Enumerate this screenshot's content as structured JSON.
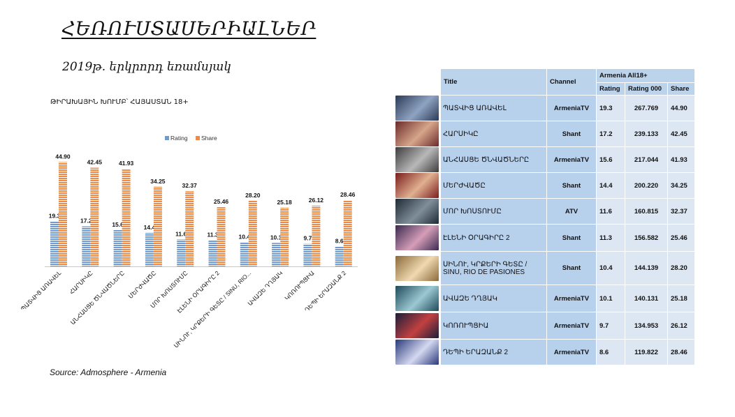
{
  "page": {
    "title": "ՀԵՌՈՒՍՏԱՍԵՐԻԱԼՆԵՐ",
    "subtitle": "2019թ. երկրորդ եռամսյակ",
    "source": "Source: Admosphere - Armenia"
  },
  "chart_data": {
    "type": "bar",
    "title": "ԹԻՐԱԽԱՅԻՆ ԽՈՒՄԲ՝ ՀԱՅԱՍՏԱՆ 18+",
    "categories": [
      "ՊԱՏՎԻՑ ԱՌԱՎԵԼ",
      "ՀԱՐՍԻԿԸ",
      "ԱՆՀԱՍՑԵ ԾՆՎԱԾՆԵՐԸ",
      "ՄԵՐԺՎԱԾԸ",
      "ՄՈՐ ԽՈՍՏՈՒՄԸ",
      "ԷԼԵՆԻ ՕՐԱԳԻՐԸ 2",
      "ՍԻՆՈՒ, ԿՐՔԵՐԻ ԳԵՏԸ / SINU, RIO...",
      "ԱՎԱԶԵ ԴՂՅԱԿ",
      "ԿՈՌՈՒՊՑԻԱ",
      "ԴԵՊԻ ԵՐԱԶԱՆՔ 2"
    ],
    "series": [
      {
        "name": "Rating",
        "values": [
          19.3,
          17.2,
          15.6,
          14.4,
          11.6,
          11.3,
          10.4,
          10.1,
          9.7,
          8.6
        ],
        "labels": [
          "19.3",
          "17.2",
          "15.6",
          "14.4",
          "11.6",
          "11.3",
          "10.4",
          "10.1",
          "9.7",
          "8.6"
        ],
        "color": "#6f9bd2"
      },
      {
        "name": "Share",
        "values": [
          44.9,
          42.45,
          41.93,
          34.25,
          32.37,
          25.46,
          28.2,
          25.18,
          26.12,
          28.46
        ],
        "labels": [
          "44.90",
          "42.45",
          "41.93",
          "34.25",
          "32.37",
          "25.46",
          "28.20",
          "25.18",
          "26.12",
          "28.46"
        ],
        "color": "#ee8a48"
      }
    ],
    "legend_position": "top",
    "ylim": [
      0,
      50
    ],
    "grid": false
  },
  "table": {
    "headers": {
      "title": "Title",
      "channel": "Channel",
      "group": "Armenia All18+",
      "rating": "Rating",
      "rating000": "Rating 000",
      "share": "Share"
    },
    "rows": [
      {
        "title": "ՊԱՏՎԻՑ ԱՌԱՎԵԼ",
        "channel": "ArmeniaTV",
        "rating": "19.3",
        "rating000": "267.769",
        "share": "44.90",
        "thumb": [
          "#2b3a55",
          "#8ea3c2"
        ]
      },
      {
        "title": "ՀԱՐՍԻԿԸ",
        "channel": "Shant",
        "rating": "17.2",
        "rating000": "239.133",
        "share": "42.45",
        "thumb": [
          "#6b2a2a",
          "#d6a58a"
        ]
      },
      {
        "title": "ԱՆՀԱՍՑԵ ԾՆՎԱԾՆԵՐԸ",
        "channel": "ArmeniaTV",
        "rating": "15.6",
        "rating000": "217.044",
        "share": "41.93",
        "thumb": [
          "#3d3d3d",
          "#b8b8b8"
        ]
      },
      {
        "title": "ՄԵՐԺՎԱԾԸ",
        "channel": "Shant",
        "rating": "14.4",
        "rating000": "200.220",
        "share": "34.25",
        "thumb": [
          "#7a1c1c",
          "#e0b090"
        ]
      },
      {
        "title": "ՄՈՐ ԽՈՍՏՈՒՄԸ",
        "channel": "ATV",
        "rating": "11.6",
        "rating000": "160.815",
        "share": "32.37",
        "thumb": [
          "#1f2a35",
          "#7f8f9a"
        ]
      },
      {
        "title": "ԷԼԵՆԻ ՕՐԱԳԻՐԸ 2",
        "channel": "Shant",
        "rating": "11.3",
        "rating000": "156.582",
        "share": "25.46",
        "thumb": [
          "#3a2a50",
          "#d59db8"
        ]
      },
      {
        "title": "ՍԻՆՈՒ, ԿՐՔԵՐԻ ԳԵՏԸ / SINU, RIO DE PASIONES",
        "channel": "Shant",
        "rating": "10.4",
        "rating000": "144.139",
        "share": "28.20",
        "thumb": [
          "#8a6a3a",
          "#f0d8b0"
        ]
      },
      {
        "title": "ԱՎԱԶԵ ԴՂՅԱԿ",
        "channel": "ArmeniaTV",
        "rating": "10.1",
        "rating000": "140.131",
        "share": "25.18",
        "thumb": [
          "#1e4a5a",
          "#9cc8d2"
        ]
      },
      {
        "title": "ԿՈՌՈՒՊՑԻԱ",
        "channel": "ArmeniaTV",
        "rating": "9.7",
        "rating000": "134.953",
        "share": "26.12",
        "thumb": [
          "#1a1f3a",
          "#c24040"
        ]
      },
      {
        "title": "ԴԵՊԻ ԵՐԱԶԱՆՔ 2",
        "channel": "ArmeniaTV",
        "rating": "8.6",
        "rating000": "119.822",
        "share": "28.46",
        "thumb": [
          "#2a3a7a",
          "#d4d8f0"
        ]
      }
    ]
  }
}
